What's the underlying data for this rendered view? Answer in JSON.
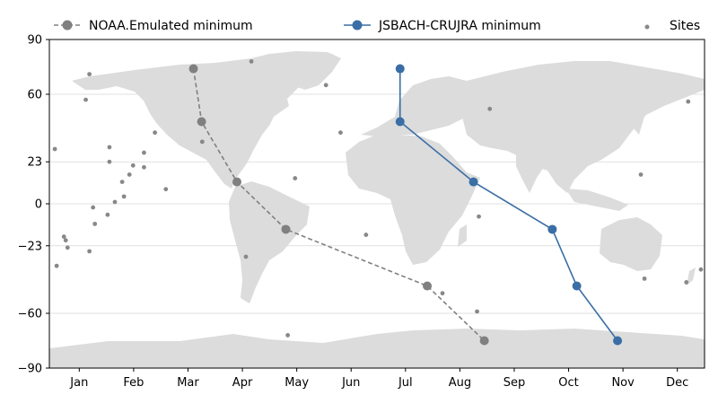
{
  "chart_data": {
    "type": "line",
    "x_months": [
      "Jan",
      "Feb",
      "Mar",
      "Apr",
      "May",
      "Jun",
      "Jul",
      "Aug",
      "Sep",
      "Oct",
      "Nov",
      "Dec"
    ],
    "y_ticks": [
      90,
      60,
      23,
      0,
      -23,
      -60,
      -90
    ],
    "ylim": [
      -90,
      90
    ],
    "xlim_month_index": [
      0.45,
      12.5
    ],
    "grid": "horizontal",
    "legend_placement": "top",
    "background": "world-map",
    "series": [
      {
        "name": "NOAA.Emulated minimum",
        "color": "#808080",
        "style": "dashed",
        "points": [
          {
            "month": 3.1,
            "lat": 74
          },
          {
            "month": 3.25,
            "lat": 45
          },
          {
            "month": 3.9,
            "lat": 12
          },
          {
            "month": 4.8,
            "lat": -14
          },
          {
            "month": 7.4,
            "lat": -45
          },
          {
            "month": 8.45,
            "lat": -75
          }
        ]
      },
      {
        "name": "JSBACH-CRUJRA minimum",
        "color": "#3a6ea5",
        "style": "solid",
        "points": [
          {
            "month": 6.9,
            "lat": 74
          },
          {
            "month": 6.9,
            "lat": 45
          },
          {
            "month": 8.25,
            "lat": 12
          },
          {
            "month": 9.7,
            "lat": -14
          },
          {
            "month": 10.15,
            "lat": -45
          },
          {
            "month": 10.9,
            "lat": -75
          }
        ]
      }
    ],
    "sites": {
      "name": "Sites",
      "color": "#888888",
      "points": [
        [
          -28,
          65
        ],
        [
          -20,
          39
        ],
        [
          -45,
          14
        ],
        [
          -72,
          -29
        ],
        [
          -49,
          -72
        ],
        [
          -177,
          30
        ],
        [
          -160,
          57
        ],
        [
          -158,
          71
        ],
        [
          -147,
          23
        ],
        [
          -139,
          4
        ],
        [
          -148,
          -6
        ],
        [
          -172,
          -18
        ],
        [
          -170,
          -24
        ],
        [
          -171,
          -20
        ],
        [
          -176,
          -34
        ],
        [
          -144,
          1
        ],
        [
          -140,
          12
        ],
        [
          -136,
          16
        ],
        [
          -134,
          21
        ],
        [
          -128,
          20
        ],
        [
          -128,
          28
        ],
        [
          -147,
          31
        ],
        [
          -158,
          -26
        ],
        [
          -155,
          -11
        ],
        [
          -156,
          -2
        ],
        [
          -96,
          34
        ],
        [
          -122,
          39
        ],
        [
          -116,
          8
        ],
        [
          -6,
          -17
        ],
        [
          56,
          -7
        ],
        [
          55,
          -59
        ],
        [
          36,
          -49
        ],
        [
          62,
          52
        ],
        [
          145,
          16
        ],
        [
          147,
          -41
        ],
        [
          170,
          -43
        ],
        [
          178,
          -36
        ],
        [
          171,
          56
        ],
        [
          -69,
          78
        ]
      ]
    }
  }
}
